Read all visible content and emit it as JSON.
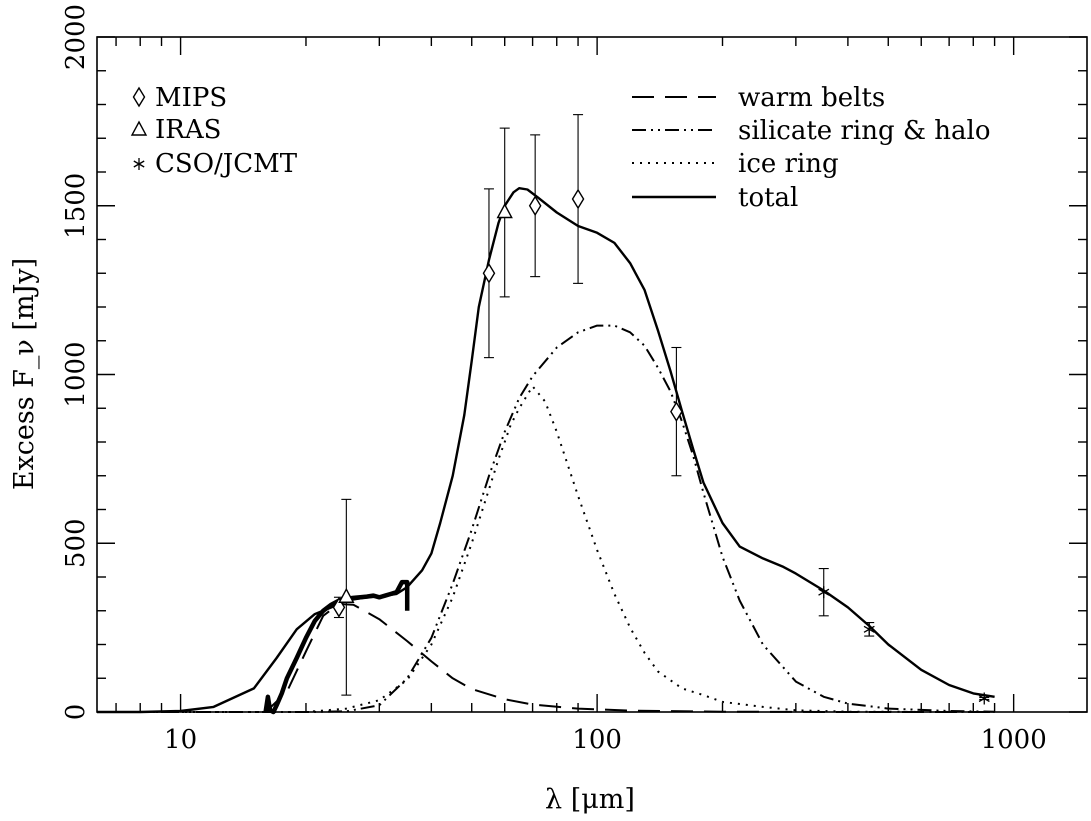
{
  "chart_data": {
    "type": "line",
    "xscale": "log",
    "xlim": [
      6.3,
      1500
    ],
    "ylim": [
      0,
      2000
    ],
    "xlabel": "λ [μm]",
    "ylabel": "Excess F_ν [mJy]",
    "x_ticks": [
      10,
      100,
      1000
    ],
    "y_ticks": [
      0,
      500,
      1000,
      1500,
      2000
    ],
    "grid": false,
    "series": [
      {
        "name": "warm belts",
        "style": "dashed",
        "points": [
          [
            16,
            0
          ],
          [
            18,
            60
          ],
          [
            20,
            180
          ],
          [
            22,
            285
          ],
          [
            24,
            320
          ],
          [
            26,
            318
          ],
          [
            30,
            275
          ],
          [
            35,
            210
          ],
          [
            40,
            150
          ],
          [
            45,
            100
          ],
          [
            50,
            68
          ],
          [
            60,
            38
          ],
          [
            70,
            22
          ],
          [
            90,
            10
          ],
          [
            120,
            4
          ],
          [
            200,
            1
          ],
          [
            400,
            0
          ],
          [
            900,
            0
          ]
        ]
      },
      {
        "name": "silicate ring & halo",
        "style": "dash-dot-dot",
        "points": [
          [
            6.3,
            0
          ],
          [
            20,
            0
          ],
          [
            25,
            2
          ],
          [
            30,
            20
          ],
          [
            35,
            100
          ],
          [
            40,
            220
          ],
          [
            45,
            380
          ],
          [
            50,
            540
          ],
          [
            55,
            700
          ],
          [
            60,
            830
          ],
          [
            65,
            930
          ],
          [
            70,
            995
          ],
          [
            80,
            1080
          ],
          [
            90,
            1125
          ],
          [
            100,
            1145
          ],
          [
            110,
            1145
          ],
          [
            120,
            1125
          ],
          [
            130,
            1085
          ],
          [
            140,
            1020
          ],
          [
            150,
            950
          ],
          [
            160,
            860
          ],
          [
            170,
            760
          ],
          [
            180,
            650
          ],
          [
            200,
            460
          ],
          [
            220,
            330
          ],
          [
            250,
            200
          ],
          [
            300,
            90
          ],
          [
            350,
            45
          ],
          [
            400,
            25
          ],
          [
            500,
            10
          ],
          [
            700,
            3
          ],
          [
            900,
            1
          ]
        ]
      },
      {
        "name": "ice ring",
        "style": "dotted",
        "points": [
          [
            6.3,
            0
          ],
          [
            20,
            0
          ],
          [
            25,
            10
          ],
          [
            30,
            35
          ],
          [
            35,
            95
          ],
          [
            40,
            200
          ],
          [
            45,
            340
          ],
          [
            50,
            500
          ],
          [
            55,
            660
          ],
          [
            58,
            750
          ],
          [
            60,
            800
          ],
          [
            62,
            850
          ],
          [
            65,
            900
          ],
          [
            68,
            940
          ],
          [
            70,
            965
          ],
          [
            75,
            920
          ],
          [
            80,
            830
          ],
          [
            90,
            640
          ],
          [
            100,
            480
          ],
          [
            110,
            350
          ],
          [
            120,
            250
          ],
          [
            130,
            175
          ],
          [
            140,
            120
          ],
          [
            160,
            70
          ],
          [
            180,
            50
          ],
          [
            200,
            30
          ],
          [
            250,
            15
          ],
          [
            300,
            5
          ],
          [
            400,
            1
          ],
          [
            900,
            0
          ]
        ]
      },
      {
        "name": "total",
        "style": "solid",
        "points": [
          [
            6.3,
            0
          ],
          [
            8,
            0
          ],
          [
            10,
            3
          ],
          [
            12,
            15
          ],
          [
            15,
            70
          ],
          [
            17,
            160
          ],
          [
            19,
            245
          ],
          [
            21,
            290
          ],
          [
            23,
            310
          ],
          [
            25,
            330
          ],
          [
            28,
            340
          ],
          [
            30,
            342
          ],
          [
            33,
            350
          ],
          [
            35,
            370
          ],
          [
            38,
            420
          ],
          [
            40,
            470
          ],
          [
            42,
            560
          ],
          [
            45,
            700
          ],
          [
            48,
            880
          ],
          [
            50,
            1040
          ],
          [
            52,
            1200
          ],
          [
            55,
            1340
          ],
          [
            58,
            1450
          ],
          [
            60,
            1500
          ],
          [
            63,
            1540
          ],
          [
            65,
            1552
          ],
          [
            68,
            1548
          ],
          [
            72,
            1525
          ],
          [
            80,
            1480
          ],
          [
            90,
            1440
          ],
          [
            100,
            1420
          ],
          [
            110,
            1390
          ],
          [
            120,
            1330
          ],
          [
            130,
            1250
          ],
          [
            140,
            1130
          ],
          [
            150,
            1010
          ],
          [
            160,
            890
          ],
          [
            170,
            780
          ],
          [
            180,
            680
          ],
          [
            200,
            560
          ],
          [
            220,
            490
          ],
          [
            250,
            455
          ],
          [
            280,
            430
          ],
          [
            300,
            410
          ],
          [
            350,
            360
          ],
          [
            400,
            310
          ],
          [
            450,
            255
          ],
          [
            500,
            200
          ],
          [
            600,
            125
          ],
          [
            700,
            80
          ],
          [
            800,
            55
          ],
          [
            900,
            45
          ]
        ]
      },
      {
        "name": "spectrum",
        "style": "thick",
        "points": [
          [
            16,
            0
          ],
          [
            16.2,
            45
          ],
          [
            16.4,
            5
          ],
          [
            16.7,
            0
          ],
          [
            17,
            20
          ],
          [
            17.5,
            55
          ],
          [
            18,
            100
          ],
          [
            19,
            160
          ],
          [
            20,
            220
          ],
          [
            21,
            270
          ],
          [
            22,
            300
          ],
          [
            23,
            318
          ],
          [
            24,
            330
          ],
          [
            25,
            335
          ],
          [
            26,
            338
          ],
          [
            27,
            340
          ],
          [
            28,
            342
          ],
          [
            29,
            345
          ],
          [
            30,
            340
          ],
          [
            31,
            345
          ],
          [
            32,
            350
          ],
          [
            33,
            355
          ],
          [
            34,
            385
          ],
          [
            35,
            385
          ],
          [
            35,
            300
          ]
        ]
      }
    ],
    "series_legend_order": [
      "warm belts",
      "silicate ring & halo",
      "ice ring",
      "total"
    ],
    "instrument_legend": [
      "MIPS",
      "IRAS",
      "CSO/JCMT"
    ],
    "observations": [
      {
        "instrument": "MIPS",
        "marker": "diamond",
        "points": [
          {
            "x": 24,
            "y": 310,
            "err": 30
          },
          {
            "x": 55,
            "y": 1300,
            "err": 250
          },
          {
            "x": 71,
            "y": 1500,
            "err": 210
          },
          {
            "x": 90,
            "y": 1520,
            "err": 250
          },
          {
            "x": 155,
            "y": 890,
            "err": 190
          }
        ]
      },
      {
        "instrument": "IRAS",
        "marker": "triangle",
        "points": [
          {
            "x": 25,
            "y": 340,
            "err": 290
          },
          {
            "x": 60,
            "y": 1480,
            "err": 250
          }
        ]
      },
      {
        "instrument": "CSO/JCMT",
        "marker": "asterisk",
        "points": [
          {
            "x": 350,
            "y": 355,
            "err": 70
          },
          {
            "x": 450,
            "y": 245,
            "err": 20
          },
          {
            "x": 850,
            "y": 40,
            "err": 3
          }
        ]
      }
    ]
  }
}
